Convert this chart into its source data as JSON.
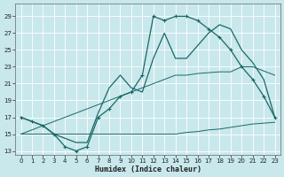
{
  "xlabel": "Humidex (Indice chaleur)",
  "bg_color": "#c8e8ec",
  "grid_color": "#b0d8dc",
  "line_color": "#1a6868",
  "xlim": [
    -0.5,
    23.5
  ],
  "ylim": [
    12.5,
    30.5
  ],
  "xticks": [
    0,
    1,
    2,
    3,
    4,
    5,
    6,
    7,
    8,
    9,
    10,
    11,
    12,
    13,
    14,
    15,
    16,
    17,
    18,
    19,
    20,
    21,
    22,
    23
  ],
  "yticks": [
    13,
    15,
    17,
    19,
    21,
    23,
    25,
    27,
    29
  ],
  "curve_marked_x": [
    0,
    1,
    2,
    3,
    4,
    5,
    6,
    7,
    8,
    9,
    10,
    11,
    12,
    13,
    14,
    15,
    16,
    17,
    18,
    19,
    20,
    21,
    22,
    23
  ],
  "curve_marked_y": [
    17,
    16.5,
    16,
    15,
    13.5,
    13,
    13.5,
    17,
    18,
    19.5,
    20,
    22,
    29,
    28.5,
    29,
    29,
    28.5,
    27.5,
    26.5,
    25,
    23,
    21.5,
    19.5,
    17
  ],
  "curve_open_x": [
    0,
    1,
    2,
    3,
    4,
    5,
    6,
    7,
    8,
    9,
    10,
    11,
    12,
    13,
    14,
    15,
    16,
    17,
    18,
    19,
    20,
    21,
    22,
    23
  ],
  "curve_open_y": [
    17,
    16.5,
    16,
    15,
    14.5,
    14,
    14,
    17.5,
    20.5,
    22,
    20.5,
    20,
    24,
    27,
    24,
    24,
    25.5,
    27,
    28,
    27.5,
    25,
    23.5,
    21.5,
    17
  ],
  "curve_flat_x": [
    0,
    1,
    2,
    3,
    4,
    5,
    6,
    7,
    8,
    9,
    10,
    11,
    12,
    13,
    14,
    15,
    16,
    17,
    18,
    19,
    20,
    21,
    22,
    23
  ],
  "curve_flat_y": [
    15,
    15,
    15,
    15,
    15,
    15,
    15,
    15,
    15,
    15,
    15,
    15,
    15,
    15,
    15,
    15.2,
    15.3,
    15.5,
    15.6,
    15.8,
    16,
    16.2,
    16.3,
    16.4
  ],
  "curve_diag_x": [
    0,
    1,
    2,
    3,
    4,
    5,
    6,
    7,
    8,
    9,
    10,
    11,
    12,
    13,
    14,
    15,
    16,
    17,
    18,
    19,
    20,
    21,
    22,
    23
  ],
  "curve_diag_y": [
    15,
    15.5,
    16,
    16.5,
    17,
    17.5,
    18,
    18.5,
    19,
    19.5,
    20,
    20.5,
    21,
    21.5,
    22,
    22,
    22.2,
    22.3,
    22.4,
    22.4,
    23,
    23,
    22.5,
    22
  ]
}
